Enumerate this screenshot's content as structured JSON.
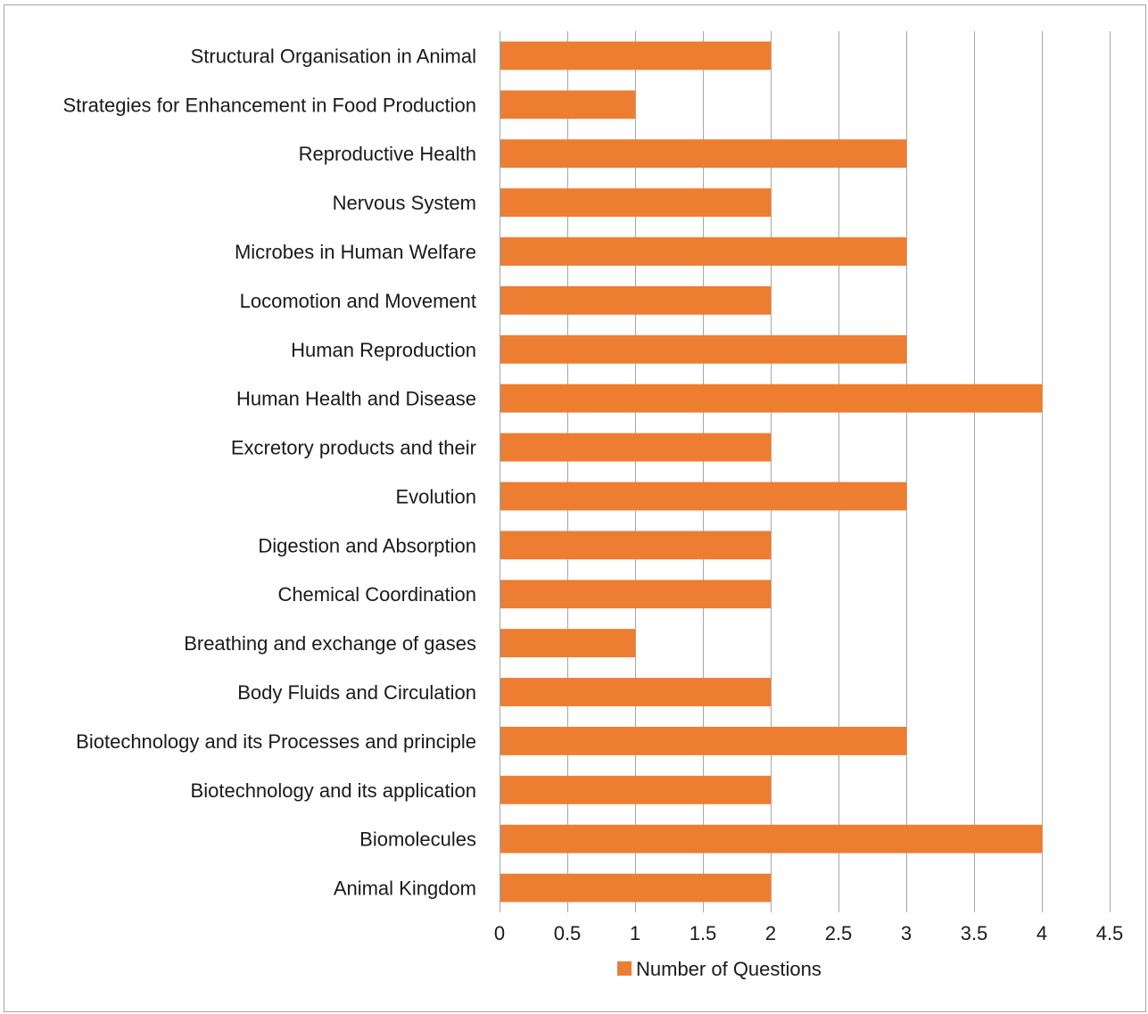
{
  "chart_data": {
    "type": "bar",
    "orientation": "horizontal",
    "categories": [
      "Animal Kingdom",
      "Biomolecules",
      "Biotechnology and its application",
      "Biotechnology and its Processes and principle",
      "Body Fluids and Circulation",
      "Breathing and exchange of gases",
      "Chemical Coordination",
      "Digestion and Absorption",
      "Evolution",
      "Excretory products and their",
      "Human Health and Disease",
      "Human Reproduction",
      "Locomotion and Movement",
      "Microbes in Human Welfare",
      "Nervous System",
      "Reproductive Health",
      "Strategies for Enhancement in Food Production",
      "Structural Organisation in Animal"
    ],
    "series": [
      {
        "name": "Number of Questions",
        "values": [
          2,
          4,
          2,
          3,
          2,
          1,
          2,
          2,
          3,
          2,
          4,
          3,
          2,
          3,
          2,
          3,
          1,
          2
        ],
        "color": "#ed7d31"
      }
    ],
    "xlim": [
      0,
      4.5
    ],
    "xticks": [
      "0",
      "0.5",
      "1",
      "1.5",
      "2",
      "2.5",
      "3",
      "3.5",
      "4",
      "4.5"
    ],
    "xlabel": "",
    "ylabel": "",
    "grid": "vertical",
    "legend": "bottom",
    "gridline_color": "#a6a6a6"
  }
}
